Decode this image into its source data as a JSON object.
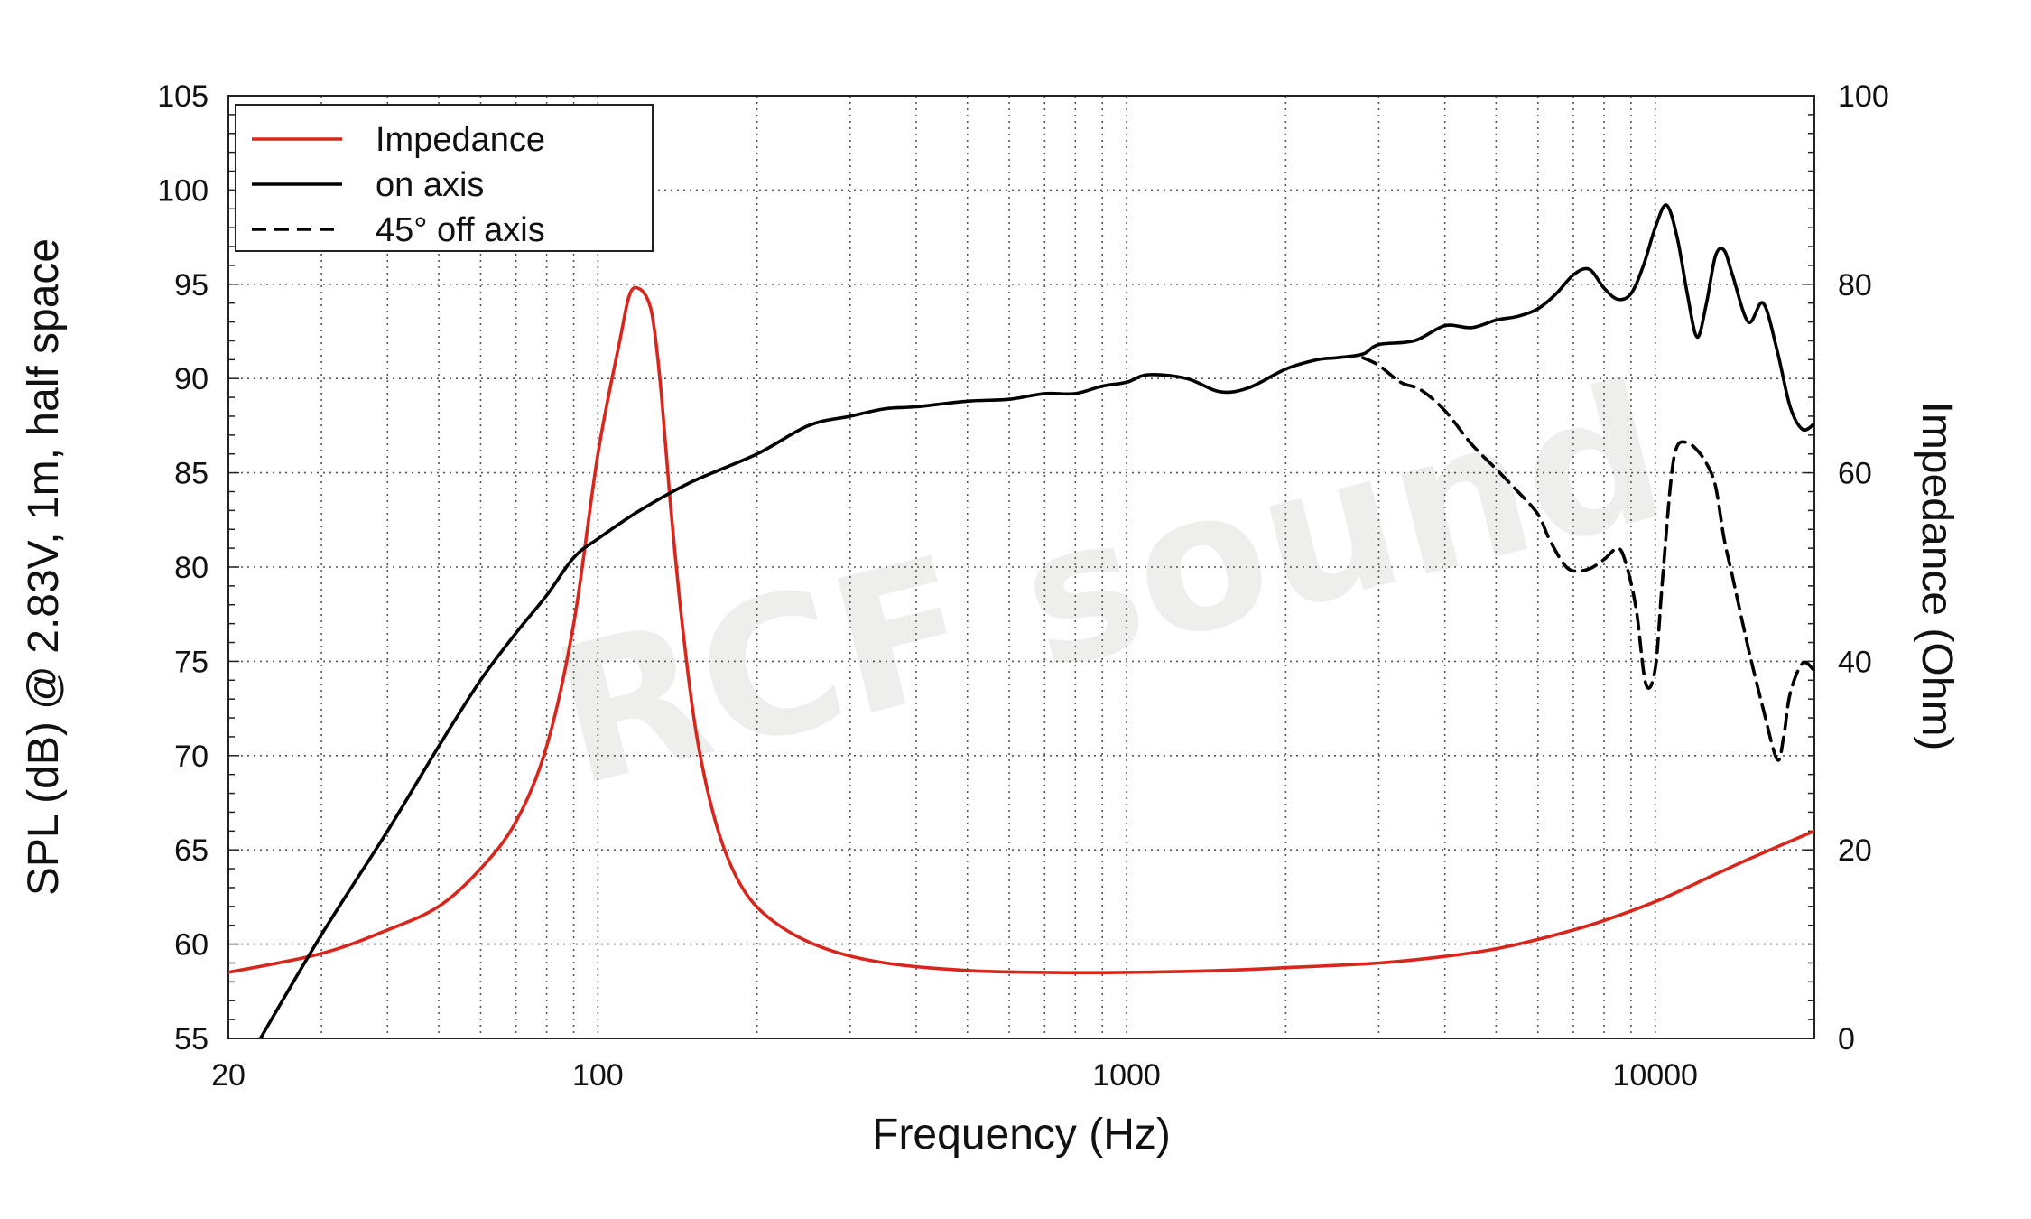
{
  "chart_data": {
    "type": "line",
    "xlabel": "Frequency (Hz)",
    "ylabel": "SPL (dB) @ 2.83V, 1m, half space",
    "y2label": "Impedance (Ohm)",
    "x_scale": "log",
    "xlim": [
      20,
      20000
    ],
    "ylim": [
      55,
      105
    ],
    "y2lim": [
      0,
      100
    ],
    "x_ticks": [
      20,
      100,
      1000,
      10000
    ],
    "x_tick_labels": [
      "20",
      "100",
      "1000",
      "10000"
    ],
    "y_ticks": [
      55,
      60,
      65,
      70,
      75,
      80,
      85,
      90,
      95,
      100,
      105
    ],
    "y_tick_labels": [
      "55",
      "60",
      "65",
      "70",
      "75",
      "80",
      "85",
      "90",
      "95",
      "100",
      "105"
    ],
    "y2_ticks": [
      0,
      20,
      40,
      60,
      80,
      100
    ],
    "y2_tick_labels": [
      "0",
      "20",
      "40",
      "60",
      "80",
      "100"
    ],
    "grid": true,
    "legend_position": "top-left",
    "watermark": "RCF sound",
    "series": [
      {
        "name": "Impedance",
        "axis": "right",
        "color": "#d9261c",
        "dash": "solid",
        "x": [
          20,
          30,
          40,
          50,
          60,
          70,
          80,
          90,
          100,
          110,
          115,
          120,
          125,
          128,
          132,
          137,
          145,
          155,
          170,
          190,
          220,
          270,
          350,
          500,
          700,
          1000,
          1500,
          2000,
          3000,
          4000,
          5000,
          6000,
          7000,
          8000,
          10000,
          12000,
          15000,
          20000
        ],
        "y": [
          7,
          9,
          11.5,
          14,
          18,
          23,
          31,
          44,
          62,
          74,
          79,
          79.5,
          78,
          75,
          68,
          57,
          43,
          31,
          21.5,
          15.5,
          12,
          9.5,
          8,
          7.2,
          7,
          7,
          7.2,
          7.5,
          8,
          8.7,
          9.5,
          10.5,
          11.5,
          12.5,
          14.5,
          16.5,
          19,
          22
        ]
      },
      {
        "name": "on axis",
        "axis": "left",
        "color": "#000000",
        "dash": "solid",
        "x": [
          23,
          30,
          40,
          50,
          60,
          70,
          80,
          90,
          100,
          120,
          150,
          200,
          250,
          300,
          350,
          400,
          500,
          600,
          700,
          800,
          900,
          1000,
          1100,
          1300,
          1500,
          1700,
          2000,
          2300,
          2500,
          2800,
          3000,
          3500,
          4000,
          4500,
          5000,
          5500,
          6000,
          6500,
          7000,
          7500,
          8000,
          8500,
          9000,
          9500,
          10000,
          10500,
          11000,
          11500,
          12000,
          12500,
          13000,
          13500,
          14000,
          15000,
          16000,
          17000,
          18000,
          19000,
          20000
        ],
        "y": [
          55,
          60.5,
          66,
          70.5,
          74,
          76.5,
          78.5,
          80.5,
          81.5,
          83,
          84.5,
          86,
          87.5,
          88,
          88.4,
          88.5,
          88.8,
          88.9,
          89.2,
          89.2,
          89.6,
          89.8,
          90.2,
          90,
          89.3,
          89.5,
          90.5,
          91,
          91.1,
          91.3,
          91.8,
          92,
          92.8,
          92.7,
          93.1,
          93.3,
          93.7,
          94.5,
          95.5,
          95.8,
          94.8,
          94.2,
          94.5,
          96,
          98,
          99.2,
          97.5,
          94.5,
          92.2,
          94,
          96.5,
          96.8,
          95.5,
          93,
          94,
          91.5,
          88.5,
          87.3,
          87.6
        ]
      },
      {
        "name": "45° off axis",
        "axis": "left",
        "color": "#000000",
        "dash": "dashed",
        "x": [
          2800,
          3000,
          3300,
          3600,
          4000,
          4500,
          5000,
          5500,
          6000,
          6300,
          6700,
          7000,
          7500,
          8000,
          8500,
          8800,
          9200,
          9600,
          10000,
          10300,
          10700,
          11000,
          11500,
          12000,
          12500,
          13000,
          13500,
          14000,
          15000,
          16000,
          17000,
          17500,
          18000,
          19000,
          20000
        ],
        "y": [
          91.1,
          90.7,
          89.8,
          89.4,
          88.3,
          86.5,
          85.2,
          84,
          82.8,
          81.5,
          80.2,
          79.8,
          79.9,
          80.4,
          81,
          80.2,
          77.8,
          73.8,
          74.6,
          79,
          84.5,
          86.4,
          86.6,
          86.2,
          85.5,
          84.3,
          81.5,
          79.5,
          75.7,
          72.5,
          69.8,
          71,
          73.3,
          74.9,
          74.5
        ]
      }
    ]
  }
}
